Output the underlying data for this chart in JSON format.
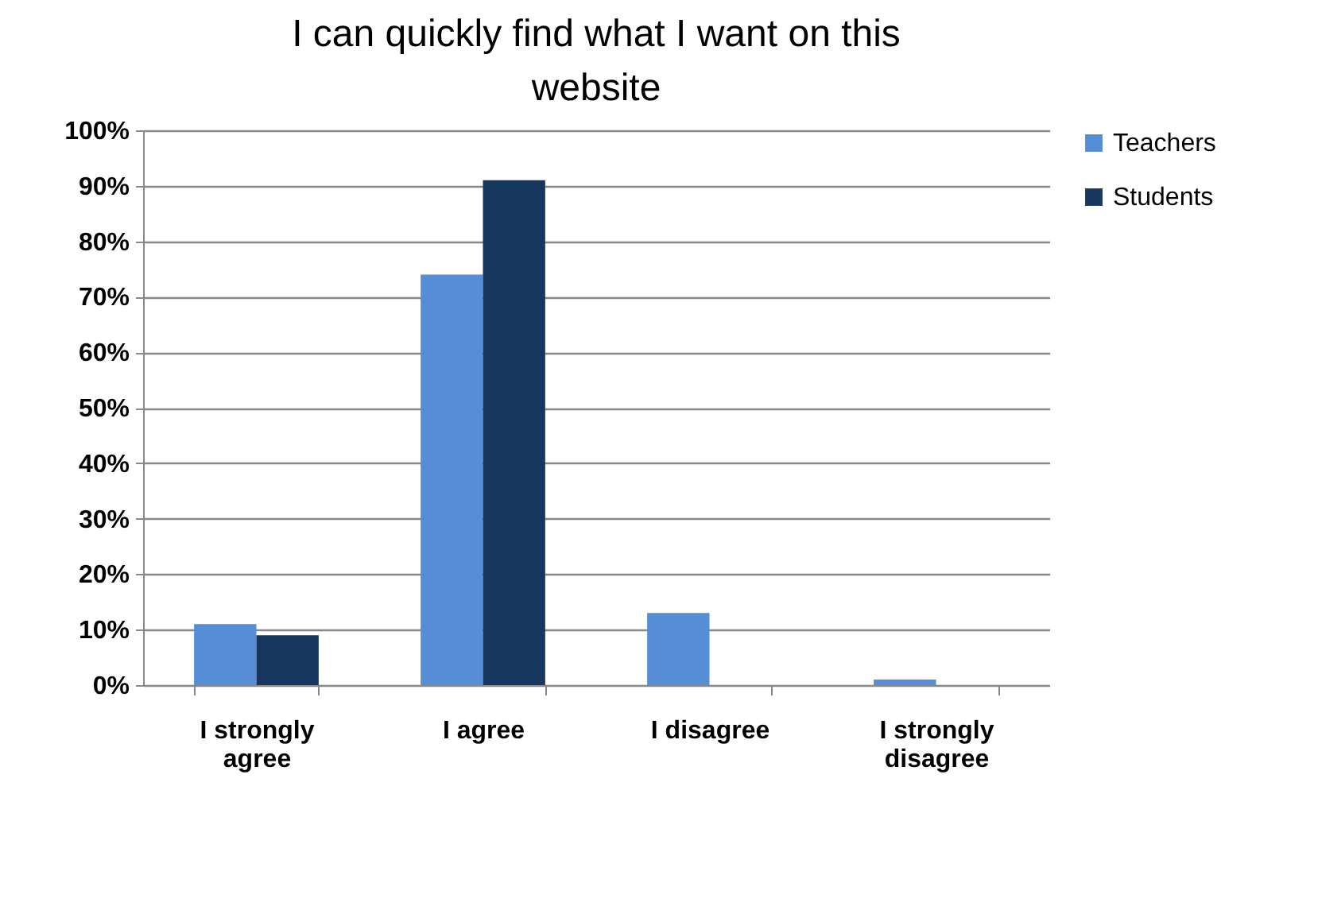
{
  "chart_data": {
    "type": "bar",
    "title": "I can quickly find what I want on this website",
    "categories": [
      "I strongly agree",
      "I agree",
      "I disagree",
      "I strongly disagree"
    ],
    "series": [
      {
        "name": "Teachers",
        "color": "#558ed5",
        "values": [
          11,
          74,
          13,
          1
        ]
      },
      {
        "name": "Students",
        "color": "#17375e",
        "values": [
          9,
          91,
          0,
          0
        ]
      }
    ],
    "ylim": [
      0,
      100
    ],
    "yticks": [
      {
        "value": 0,
        "label": "0%"
      },
      {
        "value": 10,
        "label": "10%"
      },
      {
        "value": 20,
        "label": "20%"
      },
      {
        "value": 30,
        "label": "30%"
      },
      {
        "value": 40,
        "label": "40%"
      },
      {
        "value": 50,
        "label": "50%"
      },
      {
        "value": 60,
        "label": "60%"
      },
      {
        "value": 70,
        "label": "70%"
      },
      {
        "value": 80,
        "label": "80%"
      },
      {
        "value": 90,
        "label": "90%"
      },
      {
        "value": 100,
        "label": "100%"
      }
    ],
    "grid": "y",
    "legend": "right"
  }
}
